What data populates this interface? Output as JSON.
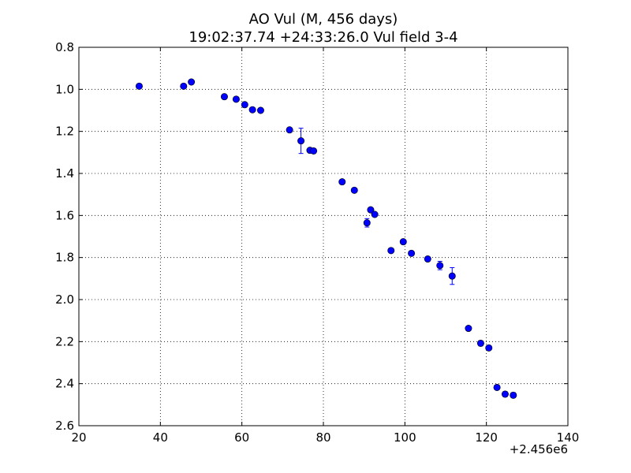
{
  "chart_data": {
    "type": "scatter",
    "title": "AO Vul (M, 456 days)",
    "subtitle": "19:02:37.74 +24:33:26.0 Vul field 3-4",
    "x_offset_label": "+2.456e6",
    "xlim": [
      20,
      140
    ],
    "ylim": [
      0.8,
      2.6
    ],
    "y_inverted": true,
    "grid": true,
    "x_ticks": [
      20,
      40,
      60,
      80,
      100,
      120,
      140
    ],
    "x_tick_labels": [
      "20",
      "40",
      "60",
      "80",
      "100",
      "120",
      "140"
    ],
    "y_ticks": [
      0.8,
      1.0,
      1.2,
      1.4,
      1.6,
      1.8,
      2.0,
      2.2,
      2.4,
      2.6
    ],
    "y_tick_labels": [
      "0.8",
      "1.0",
      "1.2",
      "1.4",
      "1.6",
      "1.8",
      "2.0",
      "2.2",
      "2.4",
      "2.6"
    ],
    "marker_color": "#0000ff",
    "errorbar_color": "#0000ff",
    "points": [
      {
        "x": 34.8,
        "y": 0.985,
        "err": 0.008
      },
      {
        "x": 45.7,
        "y": 0.985,
        "err": 0.008
      },
      {
        "x": 47.6,
        "y": 0.965,
        "err": 0.008
      },
      {
        "x": 55.7,
        "y": 1.035,
        "err": 0.008
      },
      {
        "x": 58.6,
        "y": 1.047,
        "err": 0.008
      },
      {
        "x": 60.7,
        "y": 1.073,
        "err": 0.008
      },
      {
        "x": 62.6,
        "y": 1.097,
        "err": 0.008
      },
      {
        "x": 64.6,
        "y": 1.1,
        "err": 0.008
      },
      {
        "x": 71.7,
        "y": 1.193,
        "err": 0.008
      },
      {
        "x": 74.5,
        "y": 1.245,
        "err": 0.06
      },
      {
        "x": 76.7,
        "y": 1.29,
        "err": 0.008
      },
      {
        "x": 77.6,
        "y": 1.293,
        "err": 0.008
      },
      {
        "x": 84.6,
        "y": 1.44,
        "err": 0.008
      },
      {
        "x": 87.6,
        "y": 1.48,
        "err": 0.008
      },
      {
        "x": 90.7,
        "y": 1.635,
        "err": 0.02
      },
      {
        "x": 91.6,
        "y": 1.573,
        "err": 0.01
      },
      {
        "x": 92.6,
        "y": 1.595,
        "err": 0.008
      },
      {
        "x": 96.6,
        "y": 1.767,
        "err": 0.008
      },
      {
        "x": 99.6,
        "y": 1.725,
        "err": 0.01
      },
      {
        "x": 101.6,
        "y": 1.78,
        "err": 0.008
      },
      {
        "x": 105.6,
        "y": 1.807,
        "err": 0.01
      },
      {
        "x": 108.6,
        "y": 1.838,
        "err": 0.02
      },
      {
        "x": 111.6,
        "y": 1.888,
        "err": 0.04
      },
      {
        "x": 115.6,
        "y": 2.137,
        "err": 0.01
      },
      {
        "x": 118.6,
        "y": 2.208,
        "err": 0.012
      },
      {
        "x": 120.6,
        "y": 2.23,
        "err": 0.01
      },
      {
        "x": 122.6,
        "y": 2.418,
        "err": 0.01
      },
      {
        "x": 124.6,
        "y": 2.45,
        "err": 0.012
      },
      {
        "x": 126.6,
        "y": 2.455,
        "err": 0.012
      }
    ]
  }
}
